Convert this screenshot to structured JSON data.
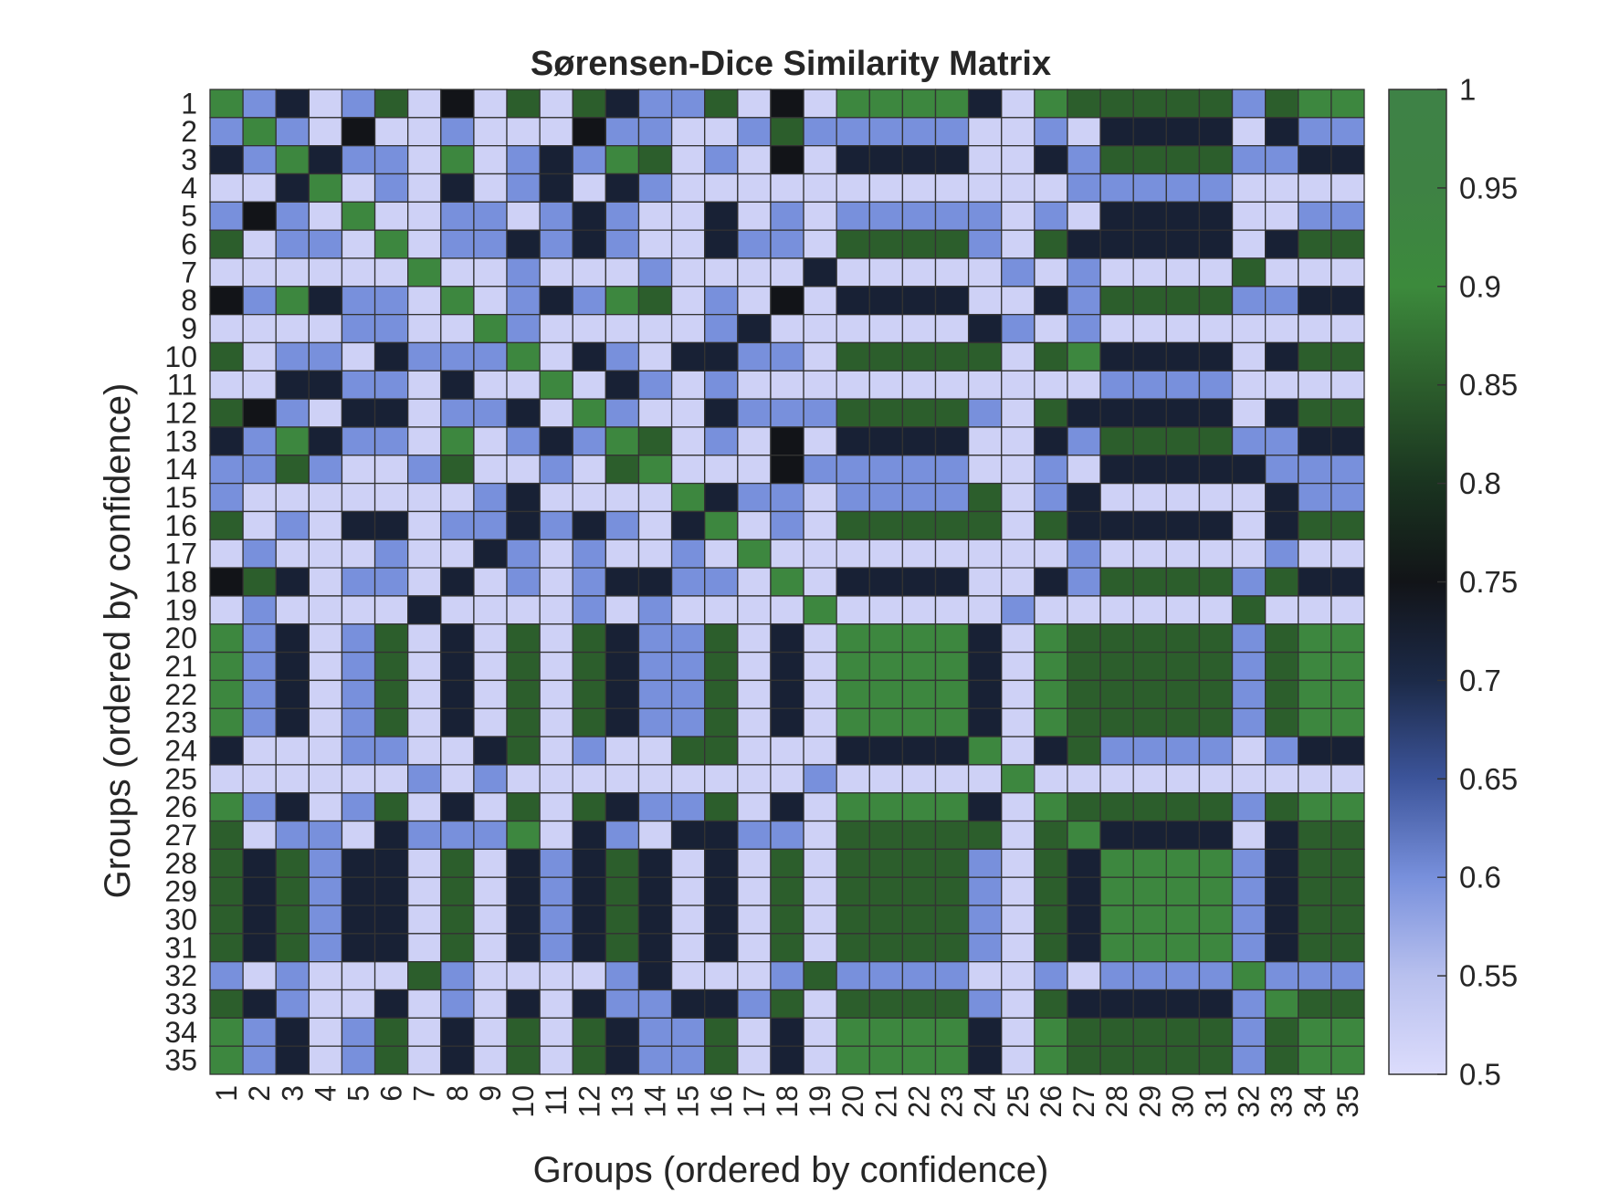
{
  "chart_data": {
    "type": "heatmap",
    "title": "Sørensen-Dice Similarity Matrix",
    "xlabel": "Groups (ordered by confidence)",
    "ylabel": "Groups (ordered by confidence)",
    "categories": [
      "1",
      "2",
      "3",
      "4",
      "5",
      "6",
      "7",
      "8",
      "9",
      "10",
      "11",
      "12",
      "13",
      "14",
      "15",
      "16",
      "17",
      "18",
      "19",
      "20",
      "21",
      "22",
      "23",
      "24",
      "25",
      "26",
      "27",
      "28",
      "29",
      "30",
      "31",
      "32",
      "33",
      "34",
      "35"
    ],
    "value_range": [
      0.5,
      1
    ],
    "colorbar": {
      "ticks": [
        0.5,
        0.55,
        0.6,
        0.65,
        0.7,
        0.75,
        0.8,
        0.85,
        0.9,
        0.95,
        1
      ],
      "tick_labels": [
        "0.5",
        "0.55",
        "0.6",
        "0.65",
        "0.7",
        "0.75",
        "0.8",
        "0.85",
        "0.9",
        "0.95",
        "1"
      ],
      "placement": "right"
    },
    "colormap": [
      {
        "v": 0.5,
        "color": "#dcdcfc"
      },
      {
        "v": 0.55,
        "color": "#b8c0ee"
      },
      {
        "v": 0.6,
        "color": "#7890dc"
      },
      {
        "v": 0.65,
        "color": "#3c549a"
      },
      {
        "v": 0.7,
        "color": "#1c2a48"
      },
      {
        "v": 0.75,
        "color": "#121418"
      },
      {
        "v": 0.8,
        "color": "#1a3420"
      },
      {
        "v": 0.85,
        "color": "#2c5e2c"
      },
      {
        "v": 0.9,
        "color": "#3c8a3c"
      },
      {
        "v": 0.95,
        "color": "#3e8244"
      },
      {
        "v": 1.0,
        "color": "#3e8246"
      }
    ],
    "grid": true,
    "cell_edge_color": "#333333",
    "matrix": [
      [
        0.92,
        0.6,
        0.72,
        0.52,
        0.6,
        0.85,
        0.52,
        0.75,
        0.52,
        0.85,
        0.52,
        0.85,
        0.72,
        0.6,
        0.6,
        0.85,
        0.52,
        0.75,
        0.52,
        0.92,
        0.92,
        0.92,
        0.92,
        0.72,
        0.52,
        0.92,
        0.85,
        0.85,
        0.85,
        0.85,
        0.85,
        0.6,
        0.85,
        0.92,
        0.92
      ],
      [
        0.6,
        0.92,
        0.6,
        0.52,
        0.75,
        0.52,
        0.52,
        0.6,
        0.52,
        0.52,
        0.52,
        0.75,
        0.6,
        0.6,
        0.52,
        0.52,
        0.6,
        0.85,
        0.6,
        0.6,
        0.6,
        0.6,
        0.6,
        0.52,
        0.52,
        0.6,
        0.52,
        0.72,
        0.72,
        0.72,
        0.72,
        0.52,
        0.72,
        0.6,
        0.6
      ],
      [
        0.72,
        0.6,
        0.92,
        0.72,
        0.6,
        0.6,
        0.52,
        0.92,
        0.52,
        0.6,
        0.72,
        0.6,
        0.92,
        0.85,
        0.52,
        0.6,
        0.52,
        0.75,
        0.52,
        0.72,
        0.72,
        0.72,
        0.72,
        0.52,
        0.52,
        0.72,
        0.6,
        0.85,
        0.85,
        0.85,
        0.85,
        0.6,
        0.6,
        0.72,
        0.72
      ],
      [
        0.52,
        0.52,
        0.72,
        0.92,
        0.52,
        0.6,
        0.52,
        0.72,
        0.52,
        0.6,
        0.72,
        0.52,
        0.72,
        0.6,
        0.52,
        0.52,
        0.52,
        0.52,
        0.52,
        0.52,
        0.52,
        0.52,
        0.52,
        0.52,
        0.52,
        0.52,
        0.6,
        0.6,
        0.6,
        0.6,
        0.6,
        0.52,
        0.52,
        0.52,
        0.52
      ],
      [
        0.6,
        0.75,
        0.6,
        0.52,
        0.92,
        0.52,
        0.52,
        0.6,
        0.6,
        0.52,
        0.6,
        0.72,
        0.6,
        0.52,
        0.52,
        0.72,
        0.52,
        0.6,
        0.52,
        0.6,
        0.6,
        0.6,
        0.6,
        0.6,
        0.52,
        0.6,
        0.52,
        0.72,
        0.72,
        0.72,
        0.72,
        0.52,
        0.52,
        0.6,
        0.6
      ],
      [
        0.85,
        0.52,
        0.6,
        0.6,
        0.52,
        0.92,
        0.52,
        0.6,
        0.6,
        0.72,
        0.6,
        0.72,
        0.6,
        0.52,
        0.52,
        0.72,
        0.6,
        0.6,
        0.52,
        0.85,
        0.85,
        0.85,
        0.85,
        0.6,
        0.52,
        0.85,
        0.72,
        0.72,
        0.72,
        0.72,
        0.72,
        0.52,
        0.72,
        0.85,
        0.85
      ],
      [
        0.52,
        0.52,
        0.52,
        0.52,
        0.52,
        0.52,
        0.92,
        0.52,
        0.52,
        0.6,
        0.52,
        0.52,
        0.52,
        0.6,
        0.52,
        0.52,
        0.52,
        0.52,
        0.72,
        0.52,
        0.52,
        0.52,
        0.52,
        0.52,
        0.6,
        0.52,
        0.6,
        0.52,
        0.52,
        0.52,
        0.52,
        0.85,
        0.52,
        0.52,
        0.52
      ],
      [
        0.75,
        0.6,
        0.92,
        0.72,
        0.6,
        0.6,
        0.52,
        0.92,
        0.52,
        0.6,
        0.72,
        0.6,
        0.92,
        0.85,
        0.52,
        0.6,
        0.52,
        0.75,
        0.52,
        0.72,
        0.72,
        0.72,
        0.72,
        0.52,
        0.52,
        0.72,
        0.6,
        0.85,
        0.85,
        0.85,
        0.85,
        0.6,
        0.6,
        0.72,
        0.72
      ],
      [
        0.52,
        0.52,
        0.52,
        0.52,
        0.6,
        0.6,
        0.52,
        0.52,
        0.92,
        0.6,
        0.52,
        0.52,
        0.52,
        0.52,
        0.52,
        0.6,
        0.72,
        0.52,
        0.52,
        0.52,
        0.52,
        0.52,
        0.52,
        0.72,
        0.6,
        0.52,
        0.6,
        0.52,
        0.52,
        0.52,
        0.52,
        0.52,
        0.52,
        0.52,
        0.52
      ],
      [
        0.85,
        0.52,
        0.6,
        0.6,
        0.52,
        0.72,
        0.6,
        0.6,
        0.6,
        0.92,
        0.52,
        0.72,
        0.6,
        0.52,
        0.72,
        0.72,
        0.6,
        0.6,
        0.52,
        0.85,
        0.85,
        0.85,
        0.85,
        0.85,
        0.52,
        0.85,
        0.92,
        0.72,
        0.72,
        0.72,
        0.72,
        0.52,
        0.72,
        0.85,
        0.85
      ],
      [
        0.52,
        0.52,
        0.72,
        0.72,
        0.6,
        0.6,
        0.52,
        0.72,
        0.52,
        0.52,
        0.92,
        0.52,
        0.72,
        0.6,
        0.52,
        0.6,
        0.52,
        0.52,
        0.52,
        0.52,
        0.52,
        0.52,
        0.52,
        0.52,
        0.52,
        0.52,
        0.52,
        0.6,
        0.6,
        0.6,
        0.6,
        0.52,
        0.52,
        0.52,
        0.52
      ],
      [
        0.85,
        0.75,
        0.6,
        0.52,
        0.72,
        0.72,
        0.52,
        0.6,
        0.6,
        0.72,
        0.52,
        0.92,
        0.6,
        0.52,
        0.52,
        0.72,
        0.6,
        0.6,
        0.6,
        0.85,
        0.85,
        0.85,
        0.85,
        0.6,
        0.52,
        0.85,
        0.72,
        0.72,
        0.72,
        0.72,
        0.72,
        0.52,
        0.72,
        0.85,
        0.85
      ],
      [
        0.72,
        0.6,
        0.92,
        0.72,
        0.6,
        0.6,
        0.52,
        0.92,
        0.52,
        0.6,
        0.72,
        0.6,
        0.92,
        0.85,
        0.52,
        0.6,
        0.52,
        0.75,
        0.52,
        0.72,
        0.72,
        0.72,
        0.72,
        0.52,
        0.52,
        0.72,
        0.6,
        0.85,
        0.85,
        0.85,
        0.85,
        0.6,
        0.6,
        0.72,
        0.72
      ],
      [
        0.6,
        0.6,
        0.85,
        0.6,
        0.52,
        0.52,
        0.6,
        0.85,
        0.52,
        0.52,
        0.6,
        0.52,
        0.85,
        0.92,
        0.52,
        0.52,
        0.52,
        0.75,
        0.6,
        0.6,
        0.6,
        0.6,
        0.6,
        0.52,
        0.52,
        0.6,
        0.52,
        0.72,
        0.72,
        0.72,
        0.72,
        0.72,
        0.6,
        0.6,
        0.6
      ],
      [
        0.6,
        0.52,
        0.52,
        0.52,
        0.52,
        0.52,
        0.52,
        0.52,
        0.6,
        0.72,
        0.52,
        0.52,
        0.52,
        0.52,
        0.92,
        0.72,
        0.6,
        0.6,
        0.52,
        0.6,
        0.6,
        0.6,
        0.6,
        0.85,
        0.52,
        0.6,
        0.72,
        0.52,
        0.52,
        0.52,
        0.52,
        0.52,
        0.72,
        0.6,
        0.6
      ],
      [
        0.85,
        0.52,
        0.6,
        0.52,
        0.72,
        0.72,
        0.52,
        0.6,
        0.6,
        0.72,
        0.6,
        0.72,
        0.6,
        0.52,
        0.72,
        0.92,
        0.52,
        0.6,
        0.52,
        0.85,
        0.85,
        0.85,
        0.85,
        0.85,
        0.52,
        0.85,
        0.72,
        0.72,
        0.72,
        0.72,
        0.72,
        0.52,
        0.72,
        0.85,
        0.85
      ],
      [
        0.52,
        0.6,
        0.52,
        0.52,
        0.52,
        0.6,
        0.52,
        0.52,
        0.72,
        0.6,
        0.52,
        0.6,
        0.52,
        0.52,
        0.6,
        0.52,
        0.92,
        0.52,
        0.52,
        0.52,
        0.52,
        0.52,
        0.52,
        0.52,
        0.52,
        0.52,
        0.6,
        0.52,
        0.52,
        0.52,
        0.52,
        0.52,
        0.6,
        0.52,
        0.52
      ],
      [
        0.75,
        0.85,
        0.72,
        0.52,
        0.6,
        0.6,
        0.52,
        0.72,
        0.52,
        0.6,
        0.52,
        0.6,
        0.72,
        0.72,
        0.6,
        0.6,
        0.52,
        0.92,
        0.52,
        0.72,
        0.72,
        0.72,
        0.72,
        0.52,
        0.52,
        0.72,
        0.6,
        0.85,
        0.85,
        0.85,
        0.85,
        0.6,
        0.85,
        0.72,
        0.72
      ],
      [
        0.52,
        0.6,
        0.52,
        0.52,
        0.52,
        0.52,
        0.72,
        0.52,
        0.52,
        0.52,
        0.52,
        0.6,
        0.52,
        0.6,
        0.52,
        0.52,
        0.52,
        0.52,
        0.92,
        0.52,
        0.52,
        0.52,
        0.52,
        0.52,
        0.6,
        0.52,
        0.52,
        0.52,
        0.52,
        0.52,
        0.52,
        0.85,
        0.52,
        0.52,
        0.52
      ],
      [
        0.92,
        0.6,
        0.72,
        0.52,
        0.6,
        0.85,
        0.52,
        0.72,
        0.52,
        0.85,
        0.52,
        0.85,
        0.72,
        0.6,
        0.6,
        0.85,
        0.52,
        0.72,
        0.52,
        0.92,
        0.92,
        0.92,
        0.92,
        0.72,
        0.52,
        0.92,
        0.85,
        0.85,
        0.85,
        0.85,
        0.85,
        0.6,
        0.85,
        0.92,
        0.92
      ],
      [
        0.92,
        0.6,
        0.72,
        0.52,
        0.6,
        0.85,
        0.52,
        0.72,
        0.52,
        0.85,
        0.52,
        0.85,
        0.72,
        0.6,
        0.6,
        0.85,
        0.52,
        0.72,
        0.52,
        0.92,
        0.92,
        0.92,
        0.92,
        0.72,
        0.52,
        0.92,
        0.85,
        0.85,
        0.85,
        0.85,
        0.85,
        0.6,
        0.85,
        0.92,
        0.92
      ],
      [
        0.92,
        0.6,
        0.72,
        0.52,
        0.6,
        0.85,
        0.52,
        0.72,
        0.52,
        0.85,
        0.52,
        0.85,
        0.72,
        0.6,
        0.6,
        0.85,
        0.52,
        0.72,
        0.52,
        0.92,
        0.92,
        0.92,
        0.92,
        0.72,
        0.52,
        0.92,
        0.85,
        0.85,
        0.85,
        0.85,
        0.85,
        0.6,
        0.85,
        0.92,
        0.92
      ],
      [
        0.92,
        0.6,
        0.72,
        0.52,
        0.6,
        0.85,
        0.52,
        0.72,
        0.52,
        0.85,
        0.52,
        0.85,
        0.72,
        0.6,
        0.6,
        0.85,
        0.52,
        0.72,
        0.52,
        0.92,
        0.92,
        0.92,
        0.92,
        0.72,
        0.52,
        0.92,
        0.85,
        0.85,
        0.85,
        0.85,
        0.85,
        0.6,
        0.85,
        0.92,
        0.92
      ],
      [
        0.72,
        0.52,
        0.52,
        0.52,
        0.6,
        0.6,
        0.52,
        0.52,
        0.72,
        0.85,
        0.52,
        0.6,
        0.52,
        0.52,
        0.85,
        0.85,
        0.52,
        0.52,
        0.52,
        0.72,
        0.72,
        0.72,
        0.72,
        0.92,
        0.52,
        0.72,
        0.85,
        0.6,
        0.6,
        0.6,
        0.6,
        0.52,
        0.6,
        0.72,
        0.72
      ],
      [
        0.52,
        0.52,
        0.52,
        0.52,
        0.52,
        0.52,
        0.6,
        0.52,
        0.6,
        0.52,
        0.52,
        0.52,
        0.52,
        0.52,
        0.52,
        0.52,
        0.52,
        0.52,
        0.6,
        0.52,
        0.52,
        0.52,
        0.52,
        0.52,
        0.92,
        0.52,
        0.52,
        0.52,
        0.52,
        0.52,
        0.52,
        0.52,
        0.52,
        0.52,
        0.52
      ],
      [
        0.92,
        0.6,
        0.72,
        0.52,
        0.6,
        0.85,
        0.52,
        0.72,
        0.52,
        0.85,
        0.52,
        0.85,
        0.72,
        0.6,
        0.6,
        0.85,
        0.52,
        0.72,
        0.52,
        0.92,
        0.92,
        0.92,
        0.92,
        0.72,
        0.52,
        0.92,
        0.85,
        0.85,
        0.85,
        0.85,
        0.85,
        0.6,
        0.85,
        0.92,
        0.92
      ],
      [
        0.85,
        0.52,
        0.6,
        0.6,
        0.52,
        0.72,
        0.6,
        0.6,
        0.6,
        0.92,
        0.52,
        0.72,
        0.6,
        0.52,
        0.72,
        0.72,
        0.6,
        0.6,
        0.52,
        0.85,
        0.85,
        0.85,
        0.85,
        0.85,
        0.52,
        0.85,
        0.92,
        0.72,
        0.72,
        0.72,
        0.72,
        0.52,
        0.72,
        0.85,
        0.85
      ],
      [
        0.85,
        0.72,
        0.85,
        0.6,
        0.72,
        0.72,
        0.52,
        0.85,
        0.52,
        0.72,
        0.6,
        0.72,
        0.85,
        0.72,
        0.52,
        0.72,
        0.52,
        0.85,
        0.52,
        0.85,
        0.85,
        0.85,
        0.85,
        0.6,
        0.52,
        0.85,
        0.72,
        0.92,
        0.92,
        0.92,
        0.92,
        0.6,
        0.72,
        0.85,
        0.85
      ],
      [
        0.85,
        0.72,
        0.85,
        0.6,
        0.72,
        0.72,
        0.52,
        0.85,
        0.52,
        0.72,
        0.6,
        0.72,
        0.85,
        0.72,
        0.52,
        0.72,
        0.52,
        0.85,
        0.52,
        0.85,
        0.85,
        0.85,
        0.85,
        0.6,
        0.52,
        0.85,
        0.72,
        0.92,
        0.92,
        0.92,
        0.92,
        0.6,
        0.72,
        0.85,
        0.85
      ],
      [
        0.85,
        0.72,
        0.85,
        0.6,
        0.72,
        0.72,
        0.52,
        0.85,
        0.52,
        0.72,
        0.6,
        0.72,
        0.85,
        0.72,
        0.52,
        0.72,
        0.52,
        0.85,
        0.52,
        0.85,
        0.85,
        0.85,
        0.85,
        0.6,
        0.52,
        0.85,
        0.72,
        0.92,
        0.92,
        0.92,
        0.92,
        0.6,
        0.72,
        0.85,
        0.85
      ],
      [
        0.85,
        0.72,
        0.85,
        0.6,
        0.72,
        0.72,
        0.52,
        0.85,
        0.52,
        0.72,
        0.6,
        0.72,
        0.85,
        0.72,
        0.52,
        0.72,
        0.52,
        0.85,
        0.52,
        0.85,
        0.85,
        0.85,
        0.85,
        0.6,
        0.52,
        0.85,
        0.72,
        0.92,
        0.92,
        0.92,
        0.92,
        0.6,
        0.72,
        0.85,
        0.85
      ],
      [
        0.6,
        0.52,
        0.6,
        0.52,
        0.52,
        0.52,
        0.85,
        0.6,
        0.52,
        0.52,
        0.52,
        0.52,
        0.6,
        0.72,
        0.52,
        0.52,
        0.52,
        0.6,
        0.85,
        0.6,
        0.6,
        0.6,
        0.6,
        0.52,
        0.52,
        0.6,
        0.52,
        0.6,
        0.6,
        0.6,
        0.6,
        0.92,
        0.6,
        0.6,
        0.6
      ],
      [
        0.85,
        0.72,
        0.6,
        0.52,
        0.52,
        0.72,
        0.52,
        0.6,
        0.52,
        0.72,
        0.52,
        0.72,
        0.6,
        0.6,
        0.72,
        0.72,
        0.6,
        0.85,
        0.52,
        0.85,
        0.85,
        0.85,
        0.85,
        0.6,
        0.52,
        0.85,
        0.72,
        0.72,
        0.72,
        0.72,
        0.72,
        0.6,
        0.92,
        0.85,
        0.85
      ],
      [
        0.92,
        0.6,
        0.72,
        0.52,
        0.6,
        0.85,
        0.52,
        0.72,
        0.52,
        0.85,
        0.52,
        0.85,
        0.72,
        0.6,
        0.6,
        0.85,
        0.52,
        0.72,
        0.52,
        0.92,
        0.92,
        0.92,
        0.92,
        0.72,
        0.52,
        0.92,
        0.85,
        0.85,
        0.85,
        0.85,
        0.85,
        0.6,
        0.85,
        0.92,
        0.92
      ],
      [
        0.92,
        0.6,
        0.72,
        0.52,
        0.6,
        0.85,
        0.52,
        0.72,
        0.52,
        0.85,
        0.52,
        0.85,
        0.72,
        0.6,
        0.6,
        0.85,
        0.52,
        0.72,
        0.52,
        0.92,
        0.92,
        0.92,
        0.92,
        0.72,
        0.52,
        0.92,
        0.85,
        0.85,
        0.85,
        0.85,
        0.85,
        0.6,
        0.85,
        0.92,
        0.92
      ]
    ]
  }
}
